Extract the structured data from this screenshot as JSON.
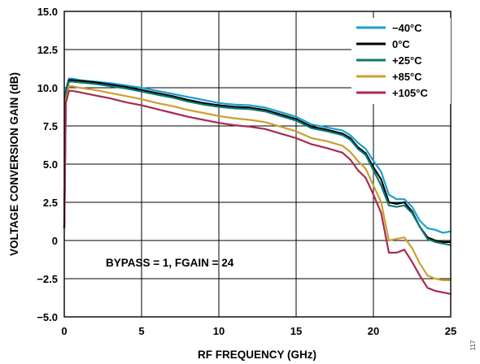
{
  "chart_data": {
    "type": "line",
    "title": "",
    "xlabel": "RF FREQUENCY (GHz)",
    "ylabel": "VOLTAGE CONVERSION GAIN (dB)",
    "xlim": [
      0,
      25
    ],
    "ylim": [
      -5.0,
      15.0
    ],
    "x_ticks": [
      0,
      5,
      10,
      15,
      20,
      25
    ],
    "x_tick_labels": [
      "0",
      "5",
      "10",
      "15",
      "20",
      "25"
    ],
    "y_ticks": [
      -5.0,
      -2.5,
      0,
      2.5,
      5.0,
      7.5,
      10.0,
      12.5,
      15.0
    ],
    "y_tick_labels": [
      "−5.0",
      "−2.5",
      "0",
      "2.5",
      "5.0",
      "7.5",
      "10.0",
      "12.5",
      "15.0"
    ],
    "grid": true,
    "legend_position": "top-right",
    "annotation": "BYPASS = 1, FGAIN = 24",
    "figure_id": "117",
    "series": [
      {
        "name": "−40°C",
        "color": "#1a9fd0",
        "points": [
          [
            0,
            0.8
          ],
          [
            0.1,
            9.8
          ],
          [
            0.3,
            10.6
          ],
          [
            0.5,
            10.6
          ],
          [
            1,
            10.5
          ],
          [
            2,
            10.4
          ],
          [
            3,
            10.3
          ],
          [
            4,
            10.15
          ],
          [
            5,
            10.0
          ],
          [
            6,
            9.8
          ],
          [
            7,
            9.6
          ],
          [
            8,
            9.4
          ],
          [
            9,
            9.2
          ],
          [
            10,
            9.0
          ],
          [
            11,
            8.9
          ],
          [
            12,
            8.85
          ],
          [
            13,
            8.7
          ],
          [
            14,
            8.4
          ],
          [
            15,
            8.1
          ],
          [
            16,
            7.6
          ],
          [
            17,
            7.4
          ],
          [
            18,
            7.2
          ],
          [
            18.5,
            6.9
          ],
          [
            19,
            6.4
          ],
          [
            19.5,
            6.0
          ],
          [
            20,
            5.2
          ],
          [
            20.5,
            4.5
          ],
          [
            21,
            3.0
          ],
          [
            21.5,
            2.7
          ],
          [
            22,
            2.7
          ],
          [
            22.5,
            2.2
          ],
          [
            23,
            1.3
          ],
          [
            23.5,
            0.8
          ],
          [
            24,
            0.7
          ],
          [
            24.5,
            0.5
          ],
          [
            25,
            0.6
          ]
        ]
      },
      {
        "name": "0°C",
        "color": "#000000",
        "points": [
          [
            0,
            0.8
          ],
          [
            0.1,
            9.7
          ],
          [
            0.3,
            10.5
          ],
          [
            0.5,
            10.5
          ],
          [
            1,
            10.45
          ],
          [
            2,
            10.35
          ],
          [
            3,
            10.2
          ],
          [
            4,
            10.05
          ],
          [
            5,
            9.85
          ],
          [
            6,
            9.65
          ],
          [
            7,
            9.45
          ],
          [
            8,
            9.2
          ],
          [
            9,
            9.0
          ],
          [
            10,
            8.85
          ],
          [
            11,
            8.75
          ],
          [
            12,
            8.7
          ],
          [
            13,
            8.55
          ],
          [
            14,
            8.25
          ],
          [
            15,
            7.95
          ],
          [
            16,
            7.45
          ],
          [
            17,
            7.25
          ],
          [
            18,
            7.0
          ],
          [
            18.5,
            6.7
          ],
          [
            19,
            6.1
          ],
          [
            19.5,
            5.7
          ],
          [
            20,
            4.8
          ],
          [
            20.5,
            4.0
          ],
          [
            21,
            2.5
          ],
          [
            21.5,
            2.4
          ],
          [
            22,
            2.5
          ],
          [
            22.5,
            1.9
          ],
          [
            23,
            0.9
          ],
          [
            23.5,
            0.2
          ],
          [
            24,
            0.0
          ],
          [
            24.5,
            -0.1
          ],
          [
            25,
            -0.1
          ]
        ]
      },
      {
        "name": "+25°C",
        "color": "#0e7a72",
        "points": [
          [
            0,
            0.8
          ],
          [
            0.1,
            9.6
          ],
          [
            0.3,
            10.4
          ],
          [
            0.5,
            10.4
          ],
          [
            1,
            10.35
          ],
          [
            2,
            10.25
          ],
          [
            3,
            10.1
          ],
          [
            4,
            9.95
          ],
          [
            5,
            9.75
          ],
          [
            6,
            9.55
          ],
          [
            7,
            9.35
          ],
          [
            8,
            9.1
          ],
          [
            9,
            8.9
          ],
          [
            10,
            8.75
          ],
          [
            11,
            8.65
          ],
          [
            12,
            8.6
          ],
          [
            13,
            8.45
          ],
          [
            14,
            8.15
          ],
          [
            15,
            7.85
          ],
          [
            16,
            7.35
          ],
          [
            17,
            7.15
          ],
          [
            18,
            6.9
          ],
          [
            18.5,
            6.6
          ],
          [
            19,
            6.0
          ],
          [
            19.5,
            5.6
          ],
          [
            20,
            4.6
          ],
          [
            20.5,
            3.6
          ],
          [
            21,
            2.3
          ],
          [
            21.5,
            2.2
          ],
          [
            22,
            2.3
          ],
          [
            22.5,
            1.8
          ],
          [
            23,
            0.9
          ],
          [
            23.5,
            0.1
          ],
          [
            24,
            -0.1
          ],
          [
            24.5,
            -0.2
          ],
          [
            25,
            -0.3
          ]
        ]
      },
      {
        "name": "+85°C",
        "color": "#c9a030",
        "points": [
          [
            0,
            0.8
          ],
          [
            0.1,
            9.2
          ],
          [
            0.3,
            10.1
          ],
          [
            0.5,
            10.1
          ],
          [
            1,
            10.0
          ],
          [
            2,
            9.85
          ],
          [
            3,
            9.65
          ],
          [
            4,
            9.45
          ],
          [
            5,
            9.25
          ],
          [
            6,
            9.0
          ],
          [
            7,
            8.8
          ],
          [
            8,
            8.55
          ],
          [
            9,
            8.35
          ],
          [
            10,
            8.15
          ],
          [
            11,
            8.0
          ],
          [
            12,
            7.9
          ],
          [
            13,
            7.75
          ],
          [
            14,
            7.45
          ],
          [
            15,
            7.15
          ],
          [
            16,
            6.7
          ],
          [
            17,
            6.5
          ],
          [
            18,
            6.2
          ],
          [
            18.5,
            5.8
          ],
          [
            19,
            5.2
          ],
          [
            19.5,
            4.7
          ],
          [
            20,
            3.6
          ],
          [
            20.5,
            2.5
          ],
          [
            21,
            0.0
          ],
          [
            21.5,
            0.1
          ],
          [
            22,
            0.2
          ],
          [
            22.5,
            -0.5
          ],
          [
            23,
            -1.5
          ],
          [
            23.5,
            -2.3
          ],
          [
            24,
            -2.5
          ],
          [
            24.5,
            -2.6
          ],
          [
            25,
            -2.6
          ]
        ]
      },
      {
        "name": "+105°C",
        "color": "#a82a4e",
        "points": [
          [
            0,
            0.8
          ],
          [
            0.1,
            9.0
          ],
          [
            0.3,
            9.8
          ],
          [
            0.5,
            9.8
          ],
          [
            1,
            9.7
          ],
          [
            2,
            9.5
          ],
          [
            3,
            9.3
          ],
          [
            4,
            9.05
          ],
          [
            5,
            8.85
          ],
          [
            6,
            8.6
          ],
          [
            7,
            8.35
          ],
          [
            8,
            8.1
          ],
          [
            9,
            7.9
          ],
          [
            10,
            7.7
          ],
          [
            11,
            7.55
          ],
          [
            12,
            7.45
          ],
          [
            13,
            7.3
          ],
          [
            14,
            7.0
          ],
          [
            15,
            6.7
          ],
          [
            16,
            6.3
          ],
          [
            17,
            6.05
          ],
          [
            18,
            5.75
          ],
          [
            18.5,
            5.3
          ],
          [
            19,
            4.6
          ],
          [
            19.5,
            4.1
          ],
          [
            20,
            3.0
          ],
          [
            20.5,
            1.8
          ],
          [
            21,
            -0.8
          ],
          [
            21.5,
            -0.8
          ],
          [
            22,
            -0.6
          ],
          [
            22.5,
            -1.4
          ],
          [
            23,
            -2.3
          ],
          [
            23.5,
            -3.1
          ],
          [
            24,
            -3.3
          ],
          [
            24.5,
            -3.4
          ],
          [
            25,
            -3.5
          ]
        ]
      }
    ]
  }
}
